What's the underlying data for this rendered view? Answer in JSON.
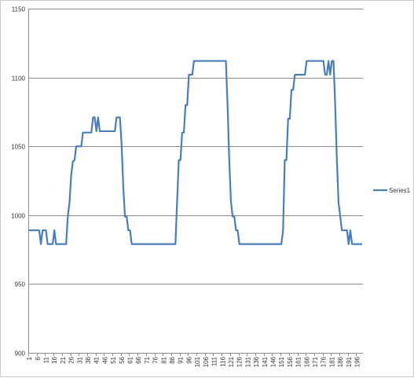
{
  "chart_data": {
    "type": "line",
    "title": "",
    "xlabel": "",
    "ylabel": "",
    "ylim": [
      900,
      1150
    ],
    "y_ticks": [
      900,
      950,
      1000,
      1050,
      1100,
      1150
    ],
    "x_count": 199,
    "x_tick_labels": [
      1,
      6,
      11,
      16,
      21,
      26,
      31,
      36,
      41,
      46,
      51,
      56,
      61,
      66,
      71,
      76,
      81,
      86,
      91,
      96,
      101,
      106,
      111,
      116,
      121,
      126,
      131,
      136,
      141,
      146,
      151,
      156,
      161,
      166,
      171,
      176,
      181,
      186,
      191,
      196
    ],
    "grid": "horizontal",
    "legend_position": "right",
    "colors": {
      "series1": "#4a7ebb",
      "grid": "#8c8c8c"
    },
    "series": [
      {
        "name": "Series1",
        "points": [
          [
            1,
            989
          ],
          [
            7,
            989
          ],
          [
            8,
            979
          ],
          [
            9,
            989
          ],
          [
            11,
            989
          ],
          [
            12,
            979
          ],
          [
            15,
            979
          ],
          [
            16,
            989
          ],
          [
            17,
            979
          ],
          [
            23,
            979
          ],
          [
            24,
            999
          ],
          [
            25,
            1009
          ],
          [
            26,
            1029
          ],
          [
            27,
            1039
          ],
          [
            28,
            1040
          ],
          [
            29,
            1050
          ],
          [
            32,
            1050
          ],
          [
            33,
            1060
          ],
          [
            38,
            1060
          ],
          [
            39,
            1071
          ],
          [
            40,
            1071
          ],
          [
            41,
            1061
          ],
          [
            42,
            1071
          ],
          [
            43,
            1061
          ],
          [
            52,
            1061
          ],
          [
            53,
            1071
          ],
          [
            54,
            1071
          ],
          [
            56,
            1051
          ],
          [
            57,
            1020
          ],
          [
            58,
            999
          ],
          [
            59,
            999
          ],
          [
            60,
            989
          ],
          [
            61,
            989
          ],
          [
            62,
            979
          ],
          [
            88,
            979
          ],
          [
            89,
            1010
          ],
          [
            90,
            1040
          ],
          [
            92,
            1060
          ],
          [
            94,
            1080
          ],
          [
            96,
            1102
          ],
          [
            98,
            1102
          ],
          [
            99,
            1112
          ],
          [
            118,
            1112
          ],
          [
            119,
            1080
          ],
          [
            120,
            1040
          ],
          [
            121,
            1010
          ],
          [
            122,
            999
          ],
          [
            123,
            999
          ],
          [
            124,
            989
          ],
          [
            125,
            989
          ],
          [
            126,
            979
          ],
          [
            150,
            979
          ],
          [
            152,
            989
          ],
          [
            153,
            1040
          ],
          [
            155,
            1070
          ],
          [
            157,
            1091
          ],
          [
            158,
            1091
          ],
          [
            159,
            1102
          ],
          [
            165,
            1102
          ],
          [
            166,
            1112
          ],
          [
            176,
            1112
          ],
          [
            177,
            1102
          ],
          [
            178,
            1102
          ],
          [
            179,
            1112
          ],
          [
            180,
            1102
          ],
          [
            181,
            1112
          ],
          [
            182,
            1112
          ],
          [
            183,
            1080
          ],
          [
            184,
            1040
          ],
          [
            185,
            1009
          ],
          [
            186,
            999
          ],
          [
            187,
            989
          ],
          [
            190,
            989
          ],
          [
            191,
            979
          ],
          [
            192,
            989
          ],
          [
            193,
            979
          ],
          [
            199,
            979
          ]
        ]
      }
    ]
  }
}
